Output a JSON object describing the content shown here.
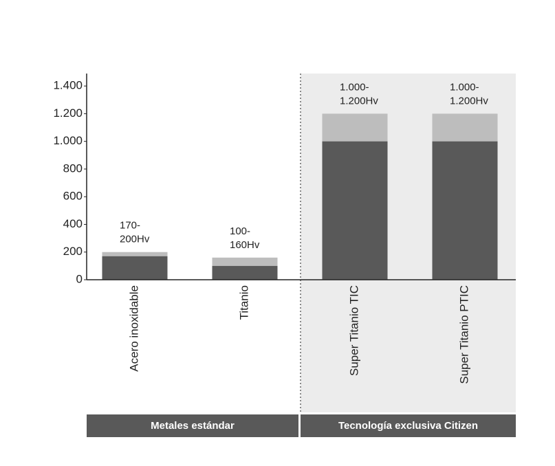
{
  "chart_data": {
    "type": "range",
    "categories": [
      "Acero inoxidable",
      "Titanio",
      "Super Titanio TIC",
      "Super Titanio PTIC"
    ],
    "series": [
      {
        "color": "#595959",
        "values": [
          170,
          100,
          1000,
          1000
        ]
      },
      {
        "color": "#bdbdbd",
        "values": [
          200,
          160,
          1200,
          1200
        ]
      }
    ],
    "value_labels": [
      "170-\n200Hv",
      "100-\n160Hv",
      "1.000-\n1.200Hv",
      "1.000-\n1.200Hv"
    ],
    "ylim": [
      0,
      1500
    ],
    "yticks": [
      0,
      200,
      400,
      600,
      800,
      {
        "value": 1000,
        "label": "1.000"
      },
      {
        "value": 1200,
        "label": "1.200"
      },
      {
        "value": 1400,
        "label": "1.400"
      }
    ],
    "groups": [
      {
        "label": "Metales estándar",
        "categories": [
          "Acero inoxidable",
          "Titanio"
        ],
        "color": "#595959"
      },
      {
        "label": "Tecnología exclusiva Citizen",
        "categories": [
          "Super Titanio TIC",
          "Super Titanio PTIC"
        ],
        "color": "#595959",
        "shaded": true
      }
    ]
  }
}
